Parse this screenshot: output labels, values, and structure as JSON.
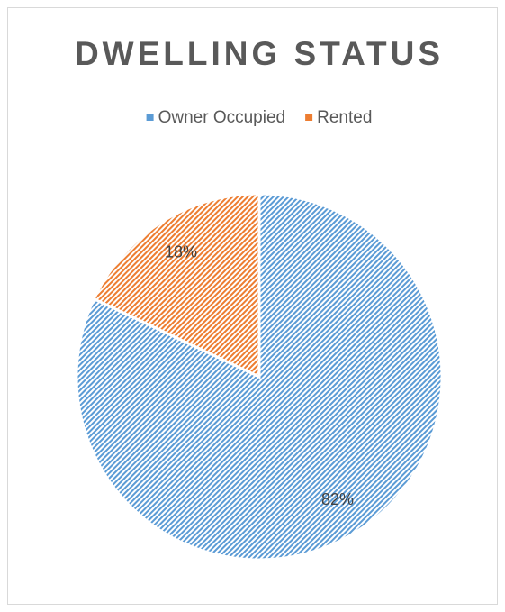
{
  "chart_data": {
    "type": "pie",
    "title": "DWELLING STATUS",
    "categories": [
      "Owner Occupied",
      "Rented"
    ],
    "values": [
      82,
      18
    ],
    "value_labels": [
      "82%",
      "18%"
    ],
    "colors": [
      "#5b9bd5",
      "#ed7d31"
    ],
    "legend": "top"
  }
}
